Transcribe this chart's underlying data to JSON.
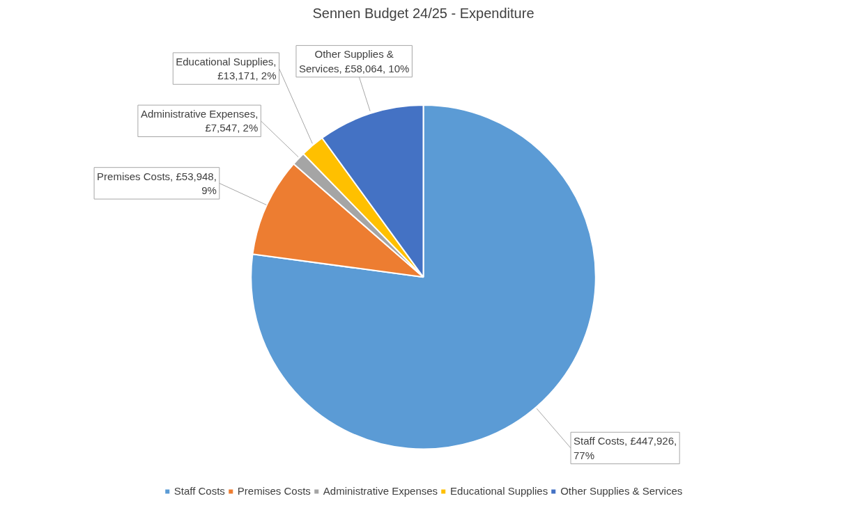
{
  "chart_data": {
    "type": "pie",
    "title": "Sennen Budget 24/25 - Expenditure",
    "categories": [
      "Staff Costs",
      "Premises Costs",
      "Administrative Expenses",
      "Educational Supplies",
      "Other Supplies & Services"
    ],
    "values": [
      447926,
      53948,
      7547,
      13171,
      58064
    ],
    "colors": [
      "#5b9bd5",
      "#ed7d31",
      "#a5a5a5",
      "#ffc000",
      "#4472c4"
    ],
    "value_labels": [
      "Staff Costs, £447,926, 77%",
      "Premises Costs, £53,948, 9%",
      "Administrative Expenses, £7,547, 2%",
      "Educational Supplies, £13,171, 2%",
      "Other Supplies & Services, £58,064, 10%"
    ],
    "legend": "bottom"
  }
}
